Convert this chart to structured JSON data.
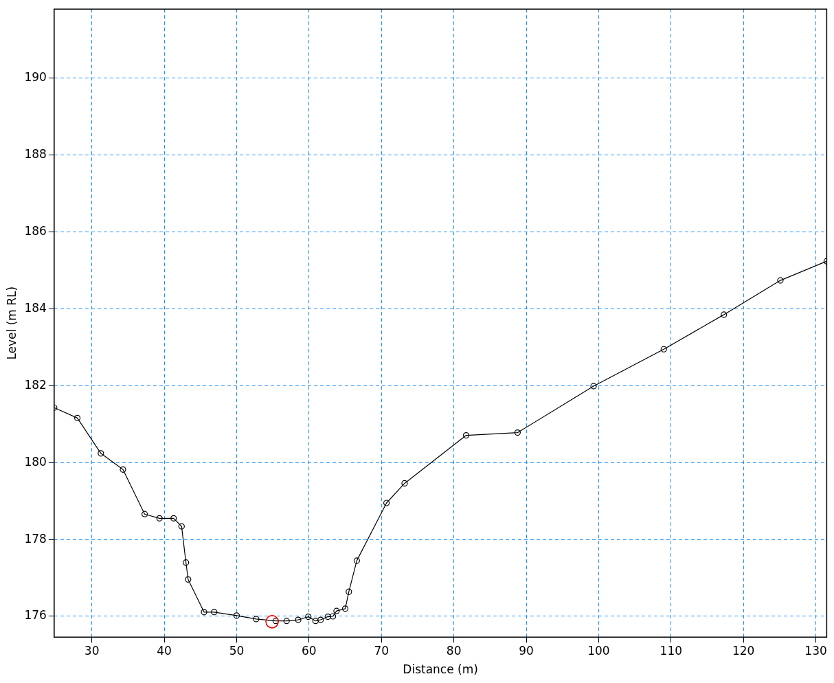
{
  "chart_data": {
    "type": "line",
    "xlabel": "Distance (m)",
    "ylabel": "Level (m RL)",
    "xlim": [
      24.8,
      131.5
    ],
    "xticks": [
      30,
      40,
      50,
      60,
      70,
      80,
      90,
      100,
      110,
      120,
      130
    ],
    "ylim": [
      175.46,
      191.8
    ],
    "yticks": [
      176,
      178,
      180,
      182,
      184,
      186,
      188,
      190
    ],
    "grid": true,
    "legend": false,
    "marker": "circle",
    "line_style": "solid",
    "series": [
      {
        "type": "line",
        "color": "#000000",
        "x": [
          24.8,
          28.0,
          31.25,
          34.3,
          37.3,
          39.35,
          41.3,
          42.4,
          43.0,
          43.3,
          45.5,
          46.9,
          50.0,
          52.7,
          55.4,
          56.9,
          58.5,
          59.9,
          60.9,
          61.6,
          62.6,
          63.3,
          63.8,
          65.0,
          65.5,
          66.6,
          70.7,
          73.2,
          81.7,
          88.8,
          99.3,
          109.0,
          117.3,
          125.1,
          131.5
        ],
        "values": [
          181.43,
          181.16,
          180.24,
          179.82,
          178.66,
          178.55,
          178.55,
          178.34,
          177.4,
          176.96,
          176.11,
          176.11,
          176.02,
          175.93,
          175.88,
          175.88,
          175.91,
          175.99,
          175.88,
          175.91,
          175.99,
          176.0,
          176.14,
          176.2,
          176.64,
          177.45,
          178.95,
          179.46,
          180.71,
          180.78,
          181.99,
          182.95,
          183.85,
          184.74,
          185.24
        ]
      },
      {
        "type": "scatter",
        "color": "#ff0000",
        "x": [
          54.9
        ],
        "values": [
          175.86
        ]
      }
    ]
  }
}
